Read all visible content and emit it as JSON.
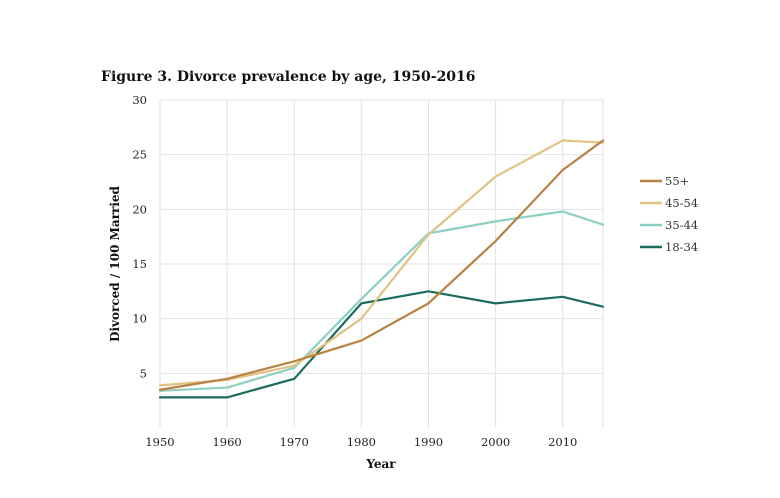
{
  "chart_data": {
    "type": "line",
    "title": "Figure 3. Divorce prevalence by age, 1950-2016",
    "xlabel": "Year",
    "ylabel": "Divorced / 100 Married",
    "xlim": [
      1950,
      2016
    ],
    "ylim": [
      0,
      30
    ],
    "x_ticks": [
      1950,
      1960,
      1970,
      1980,
      1990,
      2000,
      2010
    ],
    "y_ticks": [
      5,
      10,
      15,
      20,
      25,
      30
    ],
    "grid": {
      "vertical": true,
      "horizontal": true
    },
    "legend_position": "right",
    "x": [
      1950,
      1960,
      1970,
      1980,
      1990,
      2000,
      2010,
      2016
    ],
    "series": [
      {
        "name": "55+",
        "color": "#b98142",
        "values": [
          3.5,
          4.5,
          6.1,
          8.0,
          11.4,
          17.1,
          23.6,
          26.3
        ]
      },
      {
        "name": "45-54",
        "color": "#e0c384",
        "values": [
          3.9,
          4.4,
          5.7,
          10.0,
          17.7,
          23.0,
          26.3,
          26.1
        ]
      },
      {
        "name": "35-44",
        "color": "#8bd0c2",
        "values": [
          3.4,
          3.7,
          5.5,
          11.8,
          17.8,
          18.9,
          19.8,
          18.6
        ]
      },
      {
        "name": "18-34",
        "color": "#1c6b5f",
        "values": [
          2.8,
          2.8,
          4.5,
          11.4,
          12.5,
          11.4,
          12.0,
          11.1
        ]
      }
    ]
  }
}
